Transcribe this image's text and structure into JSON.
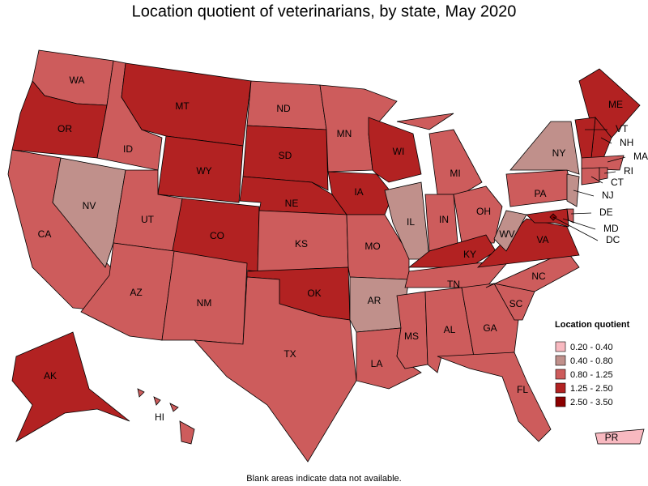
{
  "title": "Location quotient of veterinarians, by state, May 2020",
  "note": "Blank areas indicate data not available.",
  "legend": {
    "title": "Location quotient",
    "items": [
      {
        "label": "0.20 - 0.40",
        "color": "#f8b9c0"
      },
      {
        "label": "0.40 - 0.80",
        "color": "#c0908b"
      },
      {
        "label": "0.80 - 1.25",
        "color": "#cd5c5c"
      },
      {
        "label": "1.25 - 2.50",
        "color": "#b22222"
      },
      {
        "label": "2.50 - 3.50",
        "color": "#8b0000"
      }
    ]
  },
  "states": [
    {
      "label": "WA",
      "color": "#cd5c5c"
    },
    {
      "label": "OR",
      "color": "#b22222"
    },
    {
      "label": "CA",
      "color": "#cd5c5c"
    },
    {
      "label": "NV",
      "color": "#c0908b"
    },
    {
      "label": "ID",
      "color": "#cd5c5c"
    },
    {
      "label": "MT",
      "color": "#b22222"
    },
    {
      "label": "WY",
      "color": "#b22222"
    },
    {
      "label": "UT",
      "color": "#cd5c5c"
    },
    {
      "label": "CO",
      "color": "#b22222"
    },
    {
      "label": "AZ",
      "color": "#cd5c5c"
    },
    {
      "label": "NM",
      "color": "#cd5c5c"
    },
    {
      "label": "ND",
      "color": "#cd5c5c"
    },
    {
      "label": "SD",
      "color": "#b22222"
    },
    {
      "label": "NE",
      "color": "#b22222"
    },
    {
      "label": "KS",
      "color": "#cd5c5c"
    },
    {
      "label": "OK",
      "color": "#b22222"
    },
    {
      "label": "TX",
      "color": "#cd5c5c"
    },
    {
      "label": "MN",
      "color": "#cd5c5c"
    },
    {
      "label": "IA",
      "color": "#b22222"
    },
    {
      "label": "MO",
      "color": "#cd5c5c"
    },
    {
      "label": "AR",
      "color": "#c0908b"
    },
    {
      "label": "LA",
      "color": "#cd5c5c"
    },
    {
      "label": "WI",
      "color": "#b22222"
    },
    {
      "label": "IL",
      "color": "#c0908b"
    },
    {
      "label": "MI",
      "color": "#cd5c5c"
    },
    {
      "label": "IN",
      "color": "#cd5c5c"
    },
    {
      "label": "OH",
      "color": "#cd5c5c"
    },
    {
      "label": "KY",
      "color": "#b22222"
    },
    {
      "label": "TN",
      "color": "#cd5c5c"
    },
    {
      "label": "MS",
      "color": "#cd5c5c"
    },
    {
      "label": "AL",
      "color": "#cd5c5c"
    },
    {
      "label": "GA",
      "color": "#cd5c5c"
    },
    {
      "label": "FL",
      "color": "#cd5c5c"
    },
    {
      "label": "SC",
      "color": "#cd5c5c"
    },
    {
      "label": "NC",
      "color": "#cd5c5c"
    },
    {
      "label": "VA",
      "color": "#b22222"
    },
    {
      "label": "WV",
      "color": "#c0908b"
    },
    {
      "label": "PA",
      "color": "#cd5c5c"
    },
    {
      "label": "NY",
      "color": "#c0908b"
    },
    {
      "label": "ME",
      "color": "#b22222"
    },
    {
      "label": "NH",
      "color": "#b22222"
    },
    {
      "label": "VT",
      "color": "#b22222"
    },
    {
      "label": "MA",
      "color": "#cd5c5c"
    },
    {
      "label": "CT",
      "color": "#cd5c5c"
    },
    {
      "label": "RI",
      "color": "#cd5c5c"
    },
    {
      "label": "NJ",
      "color": "#c0908b"
    },
    {
      "label": "DE",
      "color": "#cd5c5c"
    },
    {
      "label": "MD",
      "color": "#b22222"
    },
    {
      "label": "DC",
      "color": "#8b0000"
    },
    {
      "label": "AK",
      "color": "#b22222"
    },
    {
      "label": "HI",
      "color": "#cd5c5c"
    },
    {
      "label": "PR",
      "color": "#f8b9c0"
    }
  ]
}
